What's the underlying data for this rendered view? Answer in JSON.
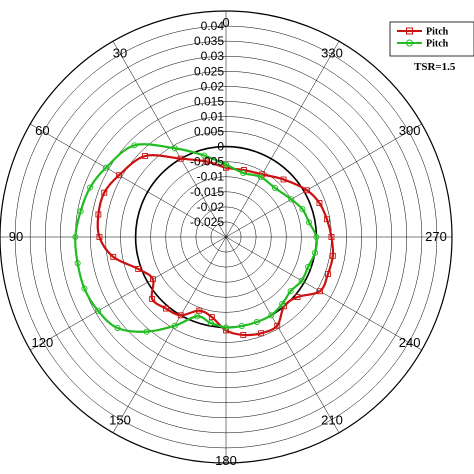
{
  "chart_data": {
    "type": "polar-line",
    "annotation": "TSR=1.5",
    "angle_labels": [
      "0",
      "30",
      "60",
      "90",
      "120",
      "150",
      "180",
      "210",
      "240",
      "270",
      "300",
      "330"
    ],
    "angle_values_deg": [
      0,
      30,
      60,
      90,
      120,
      150,
      180,
      210,
      240,
      270,
      300,
      330
    ],
    "angle_direction": "counterclockwise",
    "angle_zero": "top",
    "radial_axis": {
      "min": -0.03,
      "max": 0.045,
      "ticks": [
        "0.04",
        "0.035",
        "0.03",
        "0.025",
        "0.02",
        "0.015",
        "0.01",
        "0.005",
        "0",
        "-0.005",
        "-0.01",
        "-0.015",
        "-0.02",
        "-0.025"
      ],
      "tick_values": [
        0.04,
        0.035,
        0.03,
        0.025,
        0.02,
        0.015,
        0.01,
        0.005,
        0,
        -0.005,
        -0.01,
        -0.015,
        -0.02,
        -0.025
      ],
      "zero_circle_highlighted": true
    },
    "legend": {
      "placement": "top-right",
      "entries": [
        "Pitch",
        "Pitch"
      ]
    },
    "series": [
      {
        "name": "Pitch",
        "color": "#cc1111",
        "marker": "square",
        "theta": [
          0,
          15,
          30,
          45,
          60,
          70,
          80,
          90,
          100,
          110,
          120,
          130,
          140,
          150,
          160,
          170,
          180,
          190,
          200,
          210,
          220,
          230,
          240,
          250,
          260,
          270,
          280,
          290,
          300,
          315,
          330,
          345,
          360
        ],
        "r": [
          -0.007,
          -0.004,
          0.0,
          0.008,
          0.011,
          0.013,
          0.013,
          0.012,
          0.008,
          0.001,
          -0.002,
          0.002,
          0.001,
          0.0,
          -0.004,
          -0.003,
          0.001,
          0.003,
          0.004,
          0.004,
          0.0,
          0.001,
          0.006,
          0.006,
          0.006,
          0.005,
          0.004,
          0.003,
          0.001,
          -0.003,
          -0.006,
          -0.007,
          -0.007
        ]
      },
      {
        "name": "Pitch",
        "color": "#22bb22",
        "marker": "circle",
        "theta": [
          0,
          15,
          30,
          45,
          60,
          70,
          80,
          90,
          100,
          110,
          120,
          130,
          140,
          150,
          160,
          170,
          180,
          190,
          200,
          210,
          220,
          230,
          240,
          250,
          260,
          270,
          280,
          290,
          300,
          315,
          330,
          345,
          360
        ],
        "r": [
          -0.006,
          -0.002,
          0.004,
          0.013,
          0.016,
          0.018,
          0.019,
          0.02,
          0.02,
          0.02,
          0.019,
          0.017,
          0.011,
          0.004,
          -0.002,
          -0.001,
          0.0,
          0.0,
          0.0,
          0.0,
          -0.001,
          -0.002,
          -0.001,
          -0.001,
          0.0,
          0.0,
          -0.002,
          -0.003,
          -0.005,
          -0.007,
          -0.007,
          -0.008,
          -0.006
        ]
      }
    ]
  }
}
